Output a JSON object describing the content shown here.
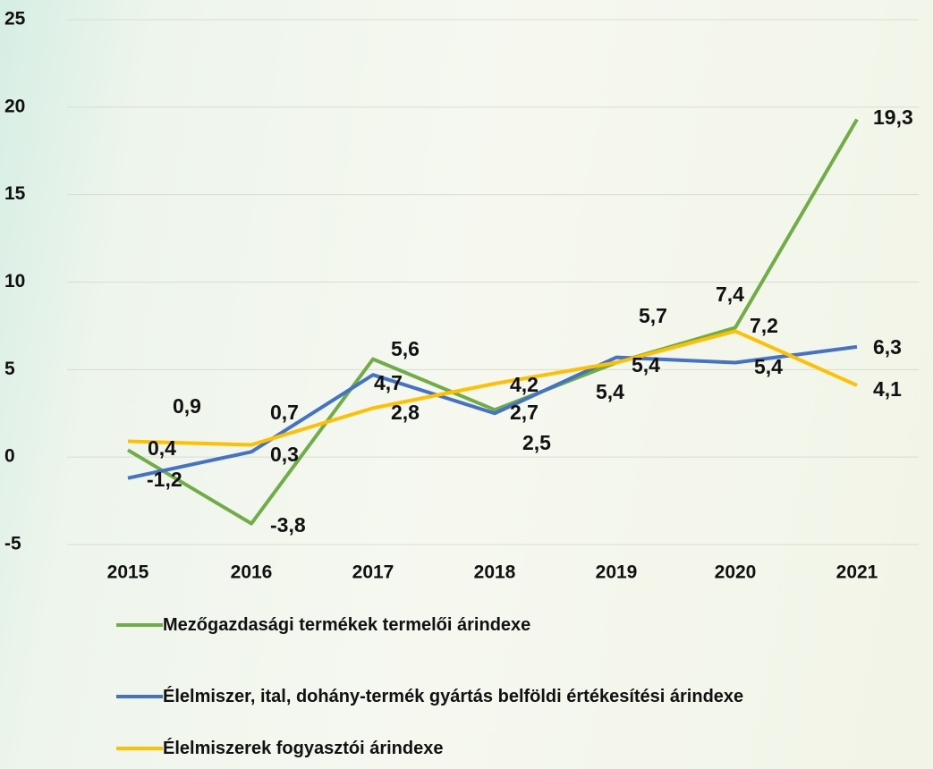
{
  "chart_data": {
    "type": "line",
    "categories": [
      "2015",
      "2016",
      "2017",
      "2018",
      "2019",
      "2020",
      "2021"
    ],
    "series": [
      {
        "name": "Mezőgazdasági termékek termelői árindexe",
        "color": "#70ad47",
        "values": [
          0.4,
          -3.8,
          5.6,
          2.7,
          5.4,
          7.4,
          19.3
        ],
        "value_labels": [
          "0,4",
          "-3,8",
          "5,6",
          "2,7",
          "5,4",
          "7,4",
          "19,3"
        ]
      },
      {
        "name": "Élelmiszer, ital, dohány-termék gyártás belföldi értékesítési árindexe",
        "color": "#4472c4",
        "values": [
          -1.2,
          0.3,
          4.7,
          2.5,
          5.7,
          5.4,
          6.3
        ],
        "value_labels": [
          "-1,2",
          "0,3",
          "4,7",
          "2,5",
          "5,7",
          "5,4",
          "6,3"
        ]
      },
      {
        "name": "Élelmiszerek fogyasztói árindexe",
        "color": "#ffc000",
        "values": [
          0.9,
          0.7,
          2.8,
          4.2,
          5.4,
          7.2,
          4.1
        ],
        "value_labels": [
          "0,9",
          "0,7",
          "2,8",
          "4,2",
          "5,4",
          "7,2",
          "4,1"
        ]
      }
    ],
    "ylim": [
      -5,
      25
    ],
    "yticks": [
      -5,
      0,
      5,
      10,
      15,
      20,
      25
    ],
    "grid": true
  }
}
